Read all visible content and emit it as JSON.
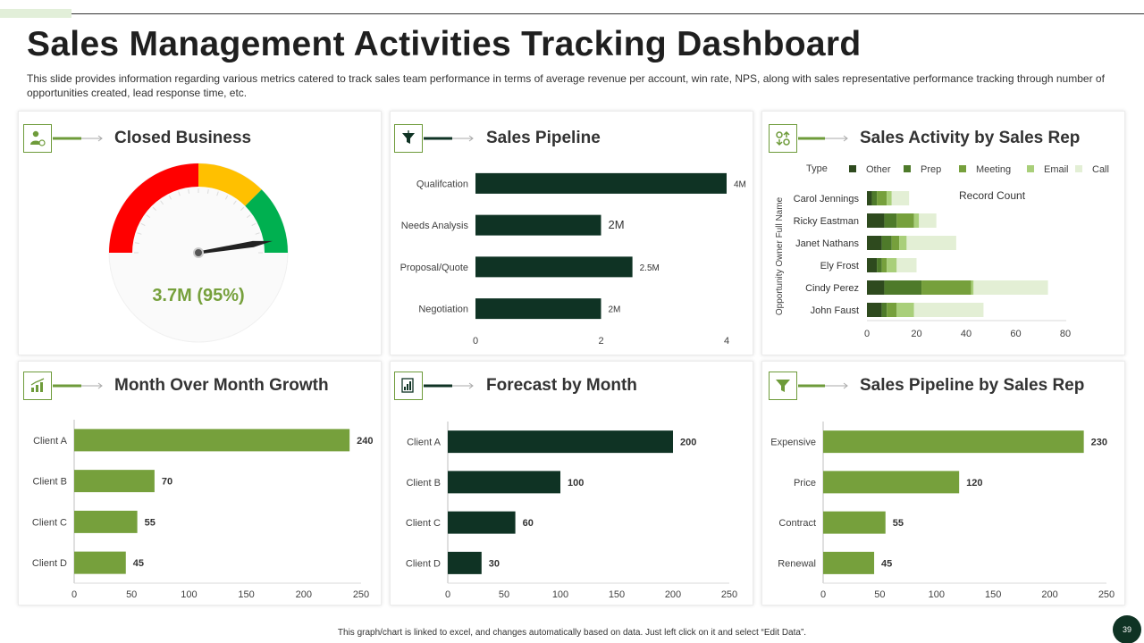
{
  "page": {
    "title": "Sales Management Activities Tracking Dashboard",
    "subtitle": "This slide provides information regarding various metrics catered to track sales team performance in terms of average revenue per account, win rate, NPS, along with sales representative performance tracking through number of opportunities created, lead response time, etc.",
    "footer": "This graph/chart is linked to excel, and changes automatically based on data. Just left click on it and select “Edit Data”.",
    "page_number": "39"
  },
  "colors": {
    "dark": "#0f3324",
    "green": "#76a03c",
    "gauge_red": "#ff0000",
    "gauge_yellow": "#ffc000",
    "gauge_green": "#00b050",
    "other": "#2e4a1e",
    "prep": "#4e7a2a",
    "meeting": "#76a03c",
    "email": "#a9cf7a",
    "call": "#e3efd5"
  },
  "panels": {
    "closed": {
      "title": "Closed Business",
      "icon": "user-money-icon"
    },
    "pipeline": {
      "title": "Sales Pipeline",
      "icon": "funnel-dollar-icon"
    },
    "activity": {
      "title": "Sales Activity by Sales Rep",
      "icon": "arrows-exchange-icon"
    },
    "mom": {
      "title": "Month Over Month Growth",
      "icon": "bar-growth-icon"
    },
    "forecast": {
      "title": "Forecast by Month",
      "icon": "forecast-report-icon"
    },
    "pipeline_rep": {
      "title": "Sales Pipeline by Sales Rep",
      "icon": "filter-funnel-icon"
    }
  },
  "chart_data": [
    {
      "id": "closed-business",
      "type": "gauge",
      "title": "Closed Business",
      "value_label": "3.7M (95%)",
      "percent": 95,
      "bands": [
        {
          "name": "red",
          "from": 0,
          "to": 0.5
        },
        {
          "name": "yellow",
          "from": 0.5,
          "to": 0.75
        },
        {
          "name": "green",
          "from": 0.75,
          "to": 1.0
        }
      ]
    },
    {
      "id": "sales-pipeline",
      "type": "bar",
      "orientation": "horizontal",
      "title": "Sales Pipeline",
      "categories": [
        "Qualifcation",
        "Needs Analysis",
        "Proposal/Quote",
        "Negotiation"
      ],
      "values": [
        4,
        2,
        2.5,
        2
      ],
      "labels": [
        "4M",
        "2M",
        "2.5M",
        "2M"
      ],
      "xlim": [
        0,
        4
      ],
      "xticks": [
        "0",
        "2",
        "4"
      ]
    },
    {
      "id": "sales-activity",
      "type": "bar",
      "orientation": "horizontal",
      "stacked": true,
      "title": "Sales Activity by Sales Rep",
      "legend_title": "Type",
      "xlabel": "Record Count",
      "ylabel": "Opportunity Owner Full Name",
      "categories": [
        "Carol Jennings",
        "Ricky Eastman",
        "Janet Nathans",
        "Ely Frost",
        "Cindy Perez",
        "John Faust"
      ],
      "series": [
        {
          "name": "Other",
          "key": "other",
          "values": [
            2,
            7,
            6,
            4,
            7,
            6
          ]
        },
        {
          "name": "Prep",
          "key": "prep",
          "values": [
            2,
            5,
            4,
            2,
            15,
            2
          ]
        },
        {
          "name": "Meeting",
          "key": "meeting",
          "values": [
            4,
            7,
            3,
            2,
            20,
            4
          ]
        },
        {
          "name": "Email",
          "key": "email",
          "values": [
            2,
            2,
            3,
            4,
            1,
            7
          ]
        },
        {
          "name": "Call",
          "key": "call",
          "values": [
            7,
            7,
            20,
            8,
            30,
            28
          ]
        }
      ],
      "xlim": [
        0,
        80
      ],
      "xticks": [
        "0",
        "20",
        "40",
        "60",
        "80"
      ]
    },
    {
      "id": "month-over-month",
      "type": "bar",
      "orientation": "horizontal",
      "title": "Month Over Month Growth",
      "categories": [
        "Client A",
        "Client B",
        "Client C",
        "Client D"
      ],
      "values": [
        240,
        70,
        55,
        45
      ],
      "xlim": [
        0,
        250
      ],
      "xticks": [
        "0",
        "50",
        "100",
        "150",
        "200",
        "250"
      ]
    },
    {
      "id": "forecast-by-month",
      "type": "bar",
      "orientation": "horizontal",
      "title": "Forecast by Month",
      "categories": [
        "Client A",
        "Client B",
        "Client C",
        "Client D"
      ],
      "values": [
        200,
        100,
        60,
        30
      ],
      "xlim": [
        0,
        250
      ],
      "xticks": [
        "0",
        "50",
        "100",
        "150",
        "200",
        "250"
      ]
    },
    {
      "id": "pipeline-by-rep",
      "type": "bar",
      "orientation": "horizontal",
      "title": "Sales Pipeline by Sales Rep",
      "categories": [
        "Expensive",
        "Price",
        "Contract",
        "Renewal"
      ],
      "values": [
        230,
        120,
        55,
        45
      ],
      "xlim": [
        0,
        250
      ],
      "xticks": [
        "0",
        "50",
        "100",
        "150",
        "200",
        "250"
      ]
    }
  ]
}
